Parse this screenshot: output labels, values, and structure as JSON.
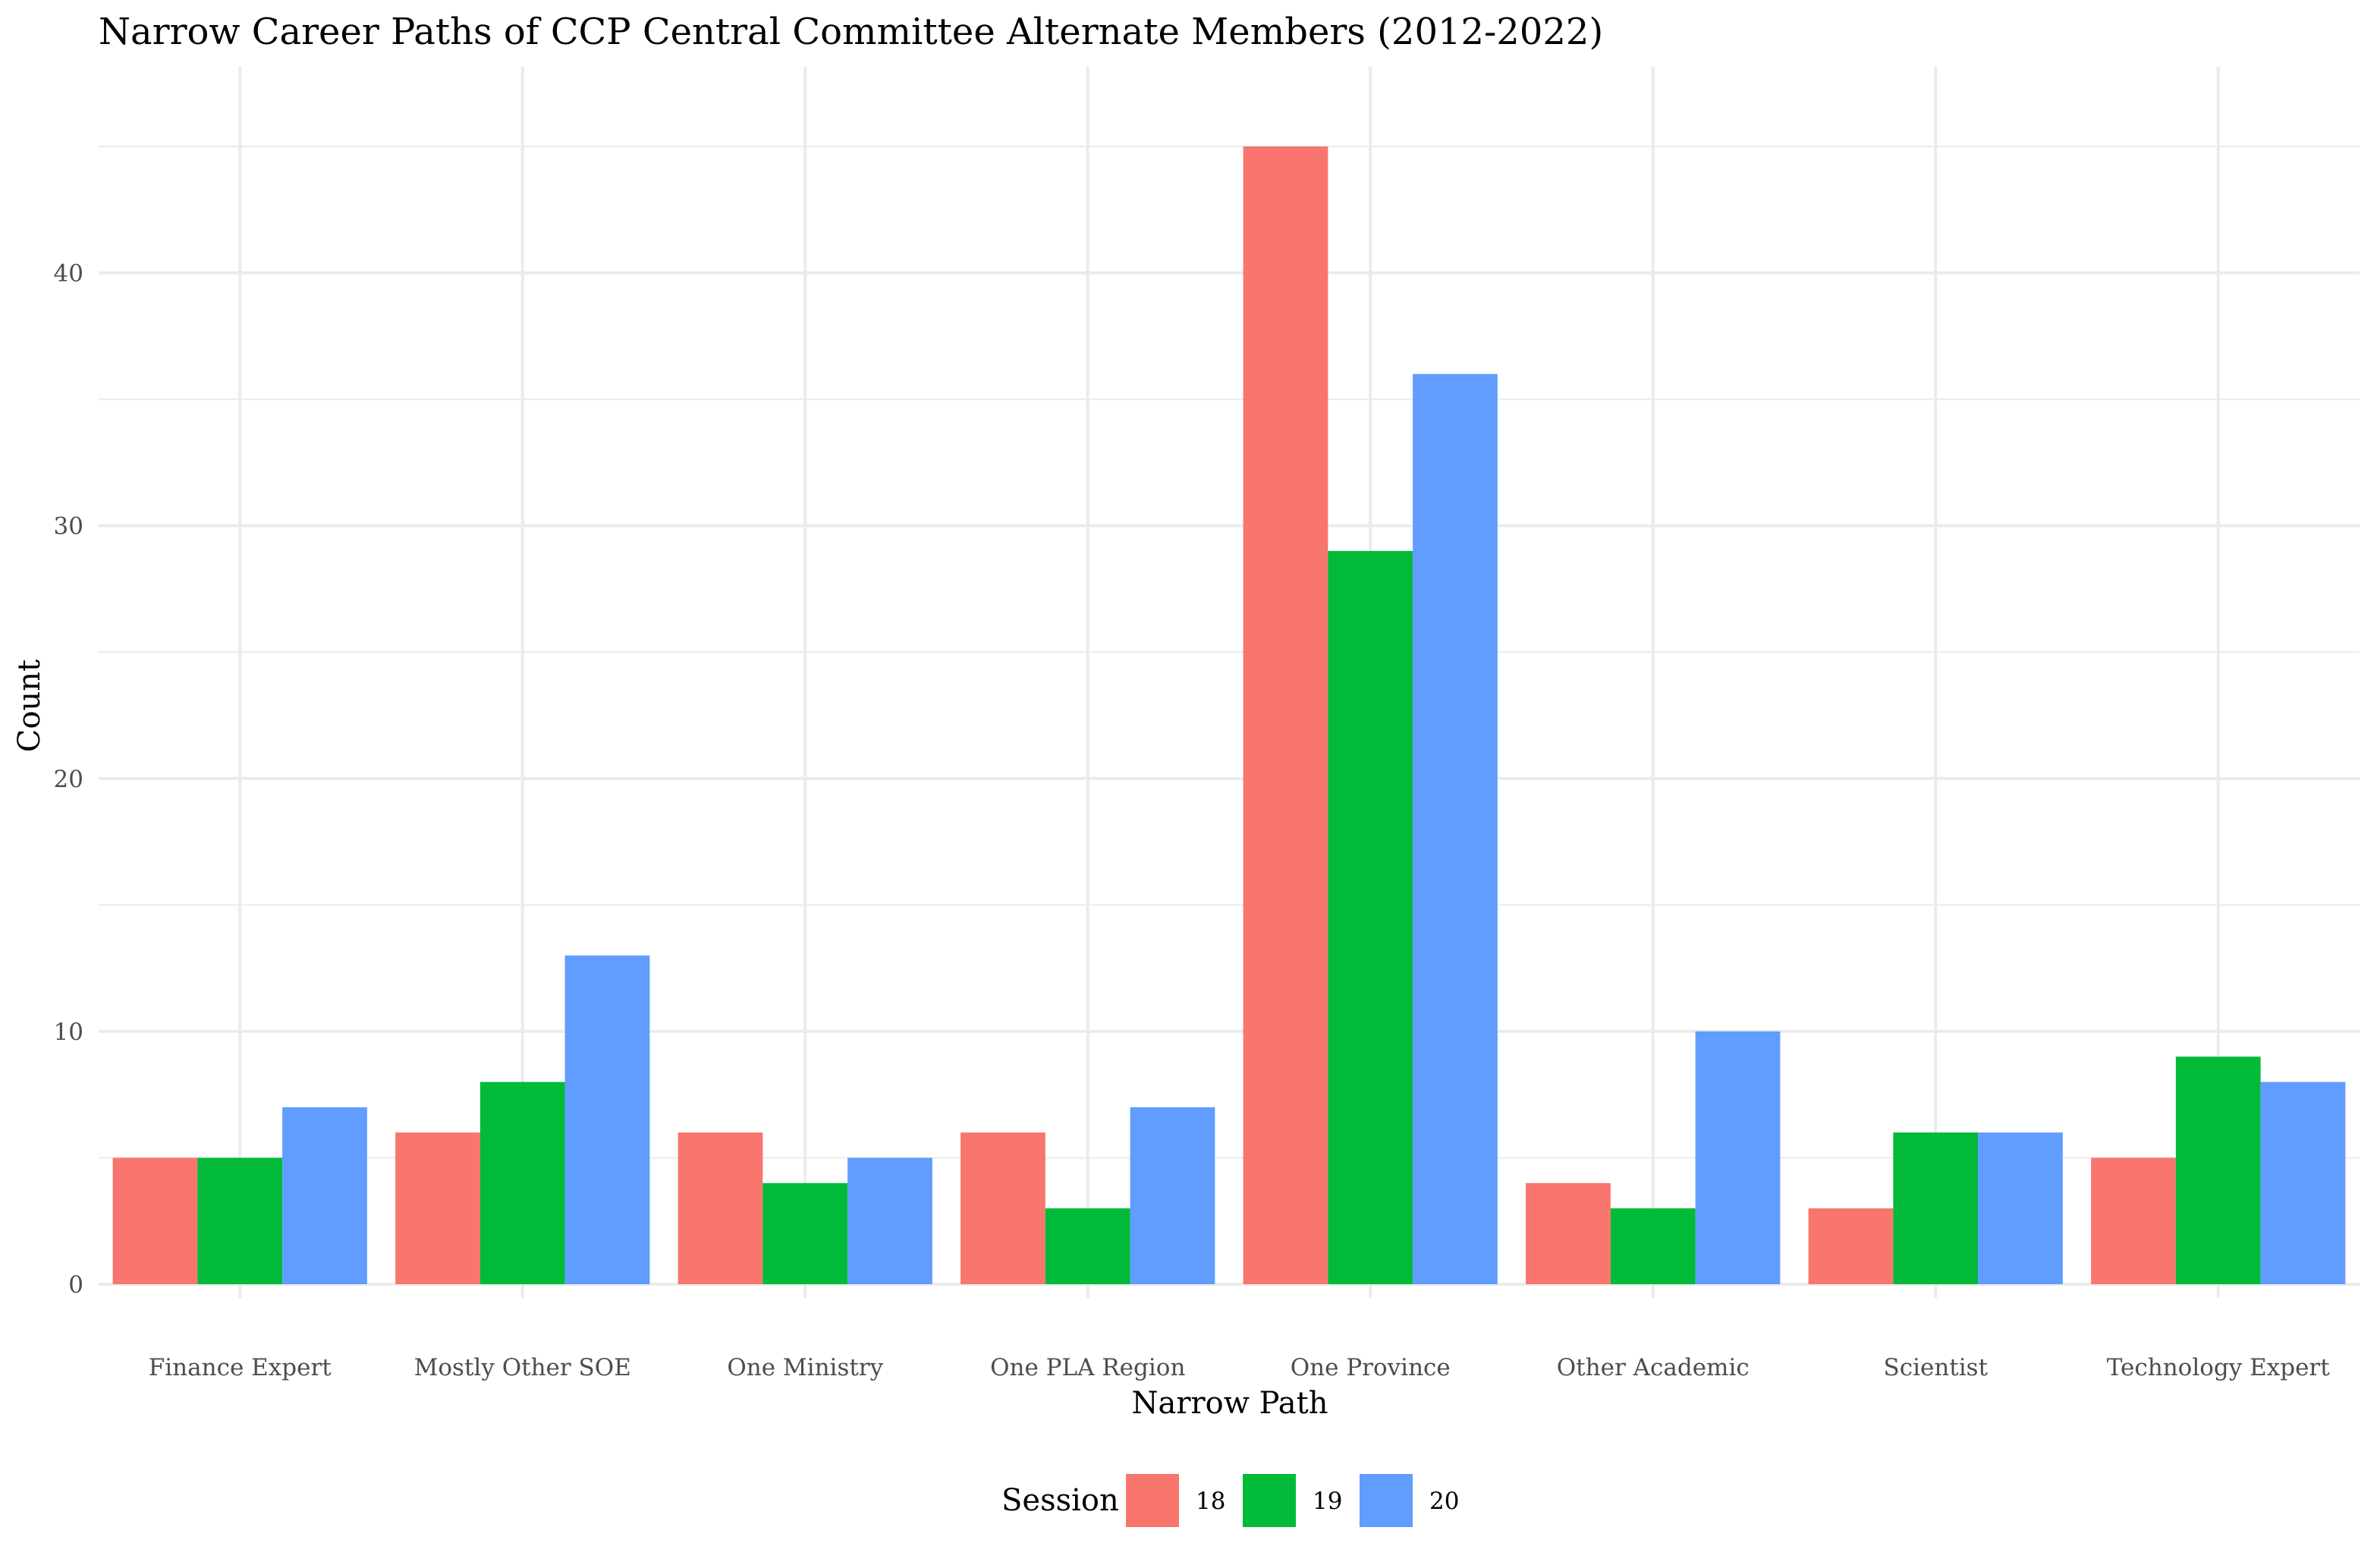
{
  "chart_data": {
    "type": "bar",
    "title": "Narrow Career Paths of CCP Central Committee Alternate Members (2012-2022)",
    "xlabel": "Narrow Path",
    "ylabel": "Count",
    "categories": [
      "Finance Expert",
      "Mostly Other SOE",
      "One Ministry",
      "One PLA Region",
      "One Province",
      "Other Academic",
      "Scientist",
      "Technology Expert"
    ],
    "series": [
      {
        "name": "18",
        "color": "#F8766D",
        "values": [
          5,
          6,
          6,
          6,
          45,
          4,
          3,
          5
        ]
      },
      {
        "name": "19",
        "color": "#00BA38",
        "values": [
          5,
          8,
          4,
          3,
          29,
          3,
          6,
          9
        ]
      },
      {
        "name": "20",
        "color": "#619CFF",
        "values": [
          7,
          13,
          5,
          7,
          36,
          10,
          6,
          8
        ]
      }
    ],
    "ylim": [
      0,
      47.25
    ],
    "yticks": [
      0,
      10,
      20,
      30,
      40
    ],
    "grid": true,
    "legend": {
      "title": "Session",
      "position": "bottom"
    }
  }
}
